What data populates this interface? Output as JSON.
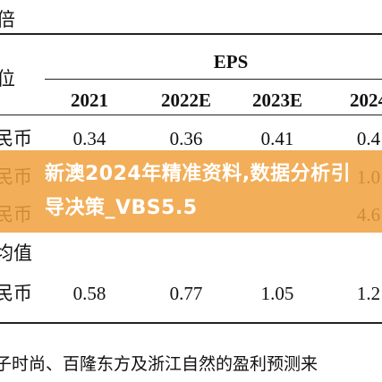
{
  "table": {
    "top_label": "倍",
    "unit_label": "位",
    "group_header": "EPS",
    "columns": [
      "2021",
      "2022E",
      "2023E",
      "2024"
    ],
    "rows": [
      {
        "label": "民币",
        "cells": [
          "0.34",
          "0.36",
          "0.41",
          "0.4"
        ]
      },
      {
        "label": "民币",
        "cells": [
          null,
          null,
          null,
          "1.0"
        ]
      },
      {
        "label": "民币",
        "cells": [
          null,
          null,
          null,
          "4.6"
        ]
      },
      {
        "label": "均值",
        "cells": [
          null,
          null,
          null,
          null
        ]
      },
      {
        "label": "民币",
        "cells": [
          "0.58",
          "0.77",
          "1.05",
          "1.2"
        ]
      }
    ]
  },
  "footnote": "子时尚、百隆东方及浙江自然的盈利预测来",
  "banner": {
    "title": "新澳2024年精准资料,数据分析引导决策_VBS5.5"
  }
}
